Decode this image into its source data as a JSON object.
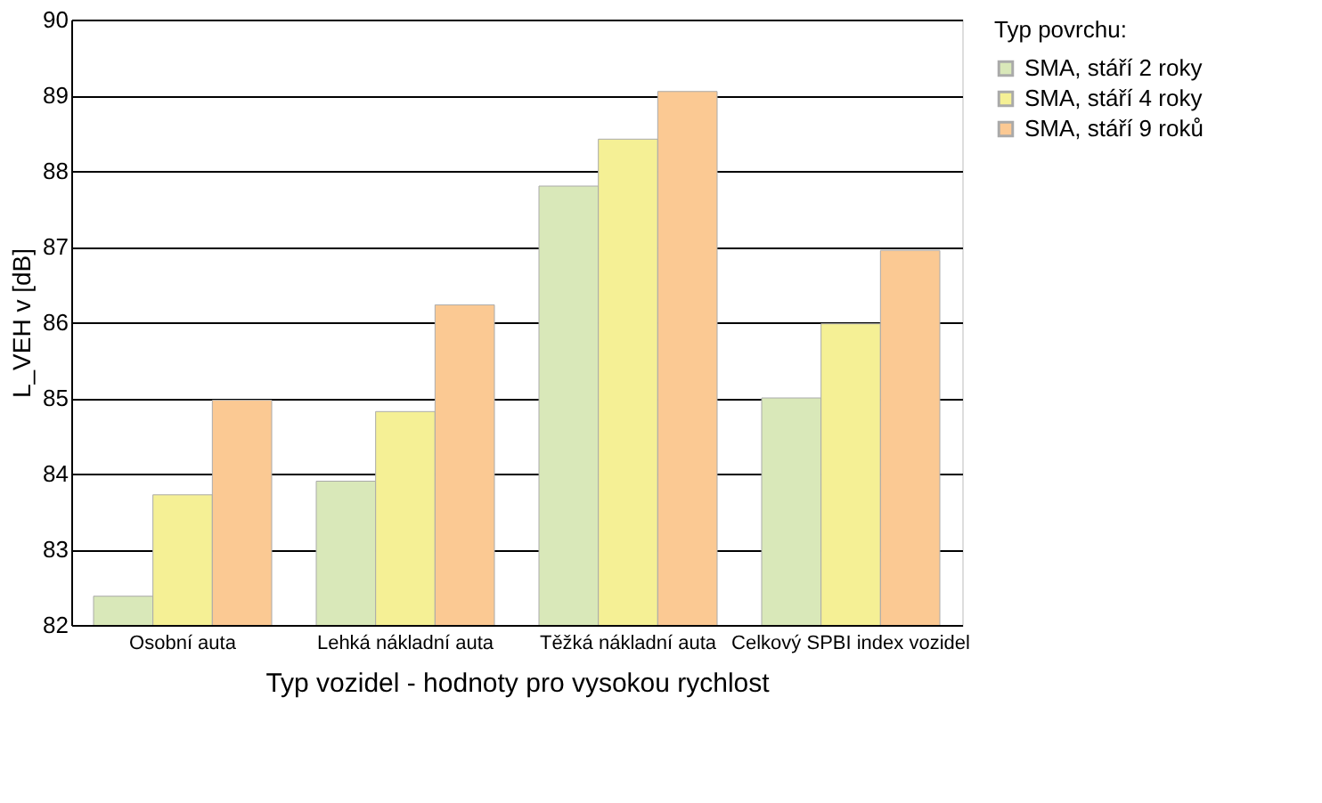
{
  "chart_data": {
    "type": "bar",
    "categories": [
      "Osobní auta",
      "Lehká nákladní auta",
      "Těžká nákladní auta",
      "Celkový SPBI index vozidel"
    ],
    "series": [
      {
        "name": "SMA, stáří 2 roky",
        "color": "#d9e8b9",
        "values": [
          82.38,
          83.9,
          87.8,
          85.0
        ]
      },
      {
        "name": "SMA, stáří 4 roky",
        "color": "#f5f095",
        "values": [
          83.72,
          84.82,
          88.42,
          85.98
        ]
      },
      {
        "name": "SMA, stáří 9 roků",
        "color": "#fbc993",
        "values": [
          84.97,
          86.23,
          89.05,
          86.95
        ]
      }
    ],
    "xlabel": "Typ vozidel - hodnoty pro vysokou rychlost",
    "ylabel": "L_VEH v [dB]",
    "legend_title": "Typ povrchu:",
    "ylim": [
      82,
      90
    ],
    "yticks": [
      82,
      83,
      84,
      85,
      86,
      87,
      88,
      89,
      90
    ],
    "grid": "y",
    "legend": "right"
  }
}
